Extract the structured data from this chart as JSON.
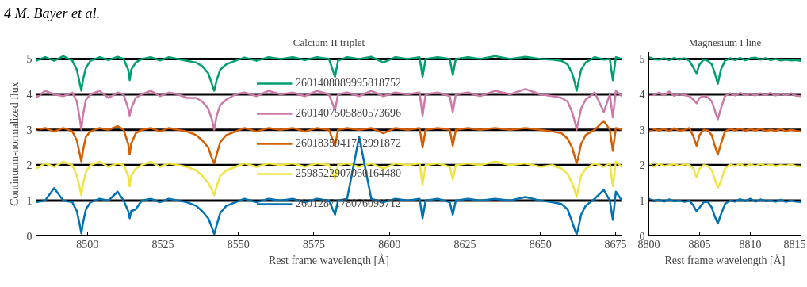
{
  "chart_data": [
    {
      "type": "line",
      "title": "Calcium II triplet",
      "xlabel": "Rest frame wavelength [Å]",
      "ylabel": "Continuum-normalized flux",
      "annotations": [
        "4    M. Bayer et al."
      ],
      "x": [
        8483,
        8486,
        8489,
        8492,
        8495,
        8496.5,
        8497.5,
        8498,
        8498.5,
        8499.5,
        8501,
        8504,
        8507,
        8510,
        8512,
        8513.5,
        8514,
        8514.5,
        8516,
        8518,
        8521,
        8524,
        8527,
        8530,
        8533,
        8536,
        8538,
        8540,
        8541.2,
        8542,
        8542.8,
        8544,
        8546,
        8549,
        8552,
        8556,
        8560,
        8564,
        8568,
        8572,
        8576,
        8580,
        8582,
        8583,
        8586,
        8590,
        8594,
        8598,
        8602,
        8606,
        8610,
        8611,
        8612,
        8616,
        8620,
        8621,
        8622,
        8626,
        8630,
        8635,
        8640,
        8645,
        8650,
        8654,
        8657,
        8659,
        8660.5,
        8661.5,
        8662,
        8662.5,
        8663.5,
        8665,
        8668,
        8671,
        8673,
        8674,
        8675,
        8677
      ],
      "series": [
        {
          "name": "2601408089995818752",
          "color": "#009e73",
          "values": [
            4.95,
            5.05,
            4.95,
            5.08,
            4.95,
            4.7,
            4.3,
            4.1,
            4.4,
            4.75,
            4.95,
            5.05,
            4.97,
            5.06,
            5.0,
            4.7,
            4.4,
            4.7,
            4.9,
            5.0,
            5.05,
            4.96,
            5.05,
            5.0,
            4.95,
            4.9,
            4.8,
            4.6,
            4.3,
            4.1,
            4.4,
            4.7,
            4.85,
            4.95,
            5.04,
            4.95,
            5.05,
            5.0,
            5.05,
            4.97,
            5.05,
            5.0,
            4.5,
            4.95,
            5.05,
            5.0,
            5.06,
            4.9,
            5.05,
            5.0,
            5.05,
            4.5,
            5.0,
            5.05,
            5.0,
            4.55,
            5.0,
            5.05,
            5.0,
            5.08,
            5.0,
            5.06,
            5.0,
            4.98,
            4.95,
            4.85,
            4.6,
            4.3,
            4.1,
            4.3,
            4.7,
            4.9,
            5.05,
            4.98,
            5.0,
            4.4,
            5.05,
            5.0
          ]
        },
        {
          "name": "2601407505880573696",
          "color": "#cc79a7",
          "values": [
            3.9,
            4.1,
            4.0,
            3.95,
            4.05,
            3.8,
            3.3,
            3.0,
            3.4,
            3.85,
            4.0,
            4.1,
            3.9,
            4.05,
            4.0,
            3.6,
            3.4,
            3.6,
            3.9,
            4.0,
            4.1,
            3.95,
            4.05,
            4.0,
            3.9,
            3.9,
            3.8,
            3.6,
            3.3,
            3.0,
            3.4,
            3.7,
            3.85,
            4.0,
            4.05,
            3.95,
            4.1,
            4.0,
            4.05,
            3.95,
            4.1,
            4.0,
            3.55,
            4.0,
            4.05,
            3.95,
            4.1,
            3.95,
            4.05,
            4.0,
            4.05,
            3.4,
            4.0,
            4.05,
            3.95,
            3.5,
            4.0,
            4.05,
            3.95,
            4.1,
            4.0,
            4.15,
            4.0,
            3.95,
            3.9,
            3.8,
            3.5,
            3.2,
            3.0,
            3.2,
            3.6,
            3.85,
            4.05,
            3.5,
            4.0,
            3.35,
            4.1,
            3.95
          ]
        },
        {
          "name": "2601835941752991872",
          "color": "#d55e00",
          "values": [
            3.0,
            3.05,
            2.95,
            3.05,
            2.95,
            2.7,
            2.3,
            2.1,
            2.4,
            2.8,
            2.95,
            3.05,
            3.0,
            3.1,
            3.0,
            2.6,
            2.3,
            2.6,
            2.9,
            3.0,
            3.05,
            2.95,
            3.05,
            3.0,
            2.95,
            2.85,
            2.7,
            2.5,
            2.2,
            2.05,
            2.3,
            2.65,
            2.85,
            2.95,
            3.05,
            2.95,
            3.05,
            3.0,
            3.05,
            2.95,
            3.05,
            3.0,
            2.55,
            3.0,
            3.05,
            3.0,
            3.05,
            2.9,
            3.05,
            3.0,
            3.05,
            2.5,
            3.0,
            3.05,
            3.0,
            2.55,
            3.0,
            3.05,
            3.0,
            3.05,
            3.0,
            3.05,
            3.0,
            2.95,
            2.9,
            2.75,
            2.5,
            2.2,
            2.05,
            2.2,
            2.6,
            2.85,
            3.0,
            3.25,
            3.0,
            2.4,
            3.05,
            3.0
          ]
        },
        {
          "name": "2598522907060164480",
          "color": "#f0e442",
          "values": [
            1.9,
            2.05,
            1.95,
            2.1,
            2.0,
            1.7,
            1.35,
            1.15,
            1.45,
            1.8,
            2.0,
            2.1,
            1.95,
            2.05,
            2.0,
            1.7,
            1.4,
            1.7,
            1.9,
            2.0,
            2.1,
            1.95,
            2.05,
            2.0,
            1.95,
            1.85,
            1.7,
            1.5,
            1.3,
            1.15,
            1.4,
            1.7,
            1.85,
            1.95,
            2.05,
            1.95,
            2.05,
            2.0,
            2.05,
            1.95,
            2.05,
            2.0,
            1.6,
            2.0,
            2.05,
            1.95,
            2.05,
            1.9,
            2.05,
            2.0,
            2.05,
            1.45,
            2.0,
            2.05,
            1.95,
            1.6,
            2.0,
            2.05,
            2.0,
            2.1,
            2.0,
            2.05,
            1.95,
            2.0,
            1.9,
            1.75,
            1.5,
            1.25,
            1.1,
            1.3,
            1.7,
            1.9,
            2.05,
            1.95,
            2.05,
            1.4,
            2.1,
            1.95
          ]
        },
        {
          "name": "2601287178076099712",
          "color": "#0072b2",
          "values": [
            0.95,
            1.0,
            1.35,
            1.0,
            0.95,
            0.7,
            0.3,
            0.07,
            0.35,
            0.75,
            0.95,
            1.05,
            1.0,
            1.25,
            1.0,
            0.7,
            0.5,
            0.7,
            0.75,
            1.0,
            1.05,
            0.95,
            1.05,
            1.0,
            0.95,
            0.85,
            0.7,
            0.5,
            0.25,
            0.05,
            0.3,
            0.65,
            0.85,
            0.95,
            1.05,
            0.95,
            1.05,
            1.0,
            1.05,
            0.95,
            1.05,
            1.0,
            0.6,
            1.0,
            1.05,
            2.8,
            1.05,
            0.95,
            1.05,
            1.0,
            1.05,
            0.5,
            1.0,
            1.05,
            0.95,
            0.6,
            1.0,
            1.05,
            1.0,
            1.05,
            1.0,
            1.1,
            1.0,
            0.95,
            0.9,
            0.75,
            0.4,
            0.15,
            0.05,
            0.2,
            0.6,
            0.85,
            1.05,
            1.3,
            1.0,
            0.45,
            1.25,
            1.0
          ]
        }
      ],
      "xlim": [
        8483,
        8677
      ],
      "xticks": [
        8500,
        8525,
        8550,
        8575,
        8600,
        8625,
        8650,
        8675
      ],
      "ylim": [
        0,
        5.2
      ],
      "yticks": [
        0,
        1,
        2,
        3,
        4,
        5
      ],
      "ref_lines": [
        {
          "axis": "y",
          "value": 1,
          "color": "#000000"
        },
        {
          "axis": "y",
          "value": 2,
          "color": "#000000"
        },
        {
          "axis": "y",
          "value": 3,
          "color": "#000000"
        },
        {
          "axis": "y",
          "value": 4,
          "color": "#000000"
        },
        {
          "axis": "y",
          "value": 5,
          "color": "#000000"
        }
      ],
      "legend": "center",
      "grid": false,
      "marker": "none",
      "line_style": "solid"
    },
    {
      "type": "line",
      "title": "Magnesium I line",
      "xlabel": "Rest frame wavelength [Å]",
      "x": [
        8800,
        8800.5,
        8801,
        8801.5,
        8802,
        8802.5,
        8803,
        8803.5,
        8804,
        8804.4,
        8804.7,
        8805,
        8805.4,
        8805.8,
        8806.2,
        8806.5,
        8806.8,
        8807.1,
        8807.5,
        8808,
        8808.5,
        8809,
        8809.5,
        8810,
        8810.5,
        8811,
        8811.5,
        8812,
        8812.5,
        8813,
        8813.5,
        8814,
        8814.5,
        8815
      ],
      "series": [
        {
          "color": "#009e73",
          "values": [
            5.05,
            5.0,
            4.98,
            5.02,
            4.97,
            5.03,
            4.98,
            5.02,
            4.95,
            4.75,
            4.6,
            4.85,
            4.98,
            4.95,
            4.85,
            4.6,
            4.3,
            4.7,
            4.95,
            5.02,
            4.97,
            5.03,
            4.96,
            5.02,
            5.04,
            4.98,
            5.02,
            4.97,
            5.0,
            4.96,
            4.98,
            4.96,
            4.97,
            4.95
          ]
        },
        {
          "color": "#cc79a7",
          "values": [
            4.0,
            3.98,
            4.05,
            3.97,
            4.08,
            3.96,
            4.02,
            3.98,
            3.95,
            3.85,
            3.75,
            3.9,
            3.95,
            3.92,
            3.8,
            3.55,
            3.3,
            3.6,
            3.95,
            4.03,
            3.97,
            4.04,
            3.98,
            4.02,
            3.97,
            4.03,
            3.98,
            4.04,
            3.97,
            4.02,
            3.98,
            4.03,
            3.96,
            3.95
          ]
        },
        {
          "color": "#d55e00",
          "values": [
            2.97,
            3.02,
            2.98,
            3.03,
            2.96,
            3.04,
            2.97,
            3.0,
            3.05,
            2.8,
            2.55,
            2.85,
            3.0,
            2.98,
            2.85,
            2.55,
            2.3,
            2.6,
            2.95,
            3.03,
            2.98,
            3.04,
            2.97,
            3.02,
            2.98,
            3.03,
            2.97,
            3.0,
            2.97,
            3.02,
            2.96,
            3.0,
            2.97,
            2.95
          ]
        },
        {
          "color": "#f0e442",
          "values": [
            2.05,
            1.95,
            2.04,
            1.97,
            2.0,
            2.03,
            1.98,
            2.02,
            2.0,
            1.9,
            1.65,
            1.9,
            2.0,
            1.98,
            1.85,
            1.6,
            1.35,
            1.55,
            1.9,
            2.02,
            1.97,
            2.03,
            1.96,
            2.02,
            1.97,
            2.03,
            1.98,
            2.02,
            1.97,
            2.0,
            1.98,
            2.02,
            1.97,
            1.96
          ]
        },
        {
          "color": "#0072b2",
          "values": [
            1.05,
            0.98,
            1.02,
            0.97,
            1.03,
            0.98,
            1.0,
            0.96,
            1.0,
            0.85,
            0.7,
            0.8,
            0.95,
            0.97,
            0.8,
            0.55,
            0.35,
            0.6,
            0.9,
            1.0,
            0.97,
            1.04,
            0.98,
            1.05,
            0.97,
            1.03,
            0.98,
            1.0,
            0.97,
            1.02,
            0.96,
            1.0,
            0.97,
            0.96
          ]
        }
      ],
      "xlim": [
        8800,
        8815
      ],
      "xticks": [
        8800,
        8805,
        8810,
        8815
      ],
      "ylim": [
        0,
        5.2
      ],
      "yticks": [
        0,
        1,
        2,
        3,
        4,
        5
      ],
      "ref_lines": [
        {
          "axis": "y",
          "value": 1,
          "color": "#000000"
        },
        {
          "axis": "y",
          "value": 2,
          "color": "#000000"
        },
        {
          "axis": "y",
          "value": 3,
          "color": "#000000"
        },
        {
          "axis": "y",
          "value": 4,
          "color": "#000000"
        },
        {
          "axis": "y",
          "value": 5,
          "color": "#000000"
        }
      ],
      "legend": false,
      "grid": false,
      "marker": "none",
      "line_style": "solid"
    }
  ]
}
